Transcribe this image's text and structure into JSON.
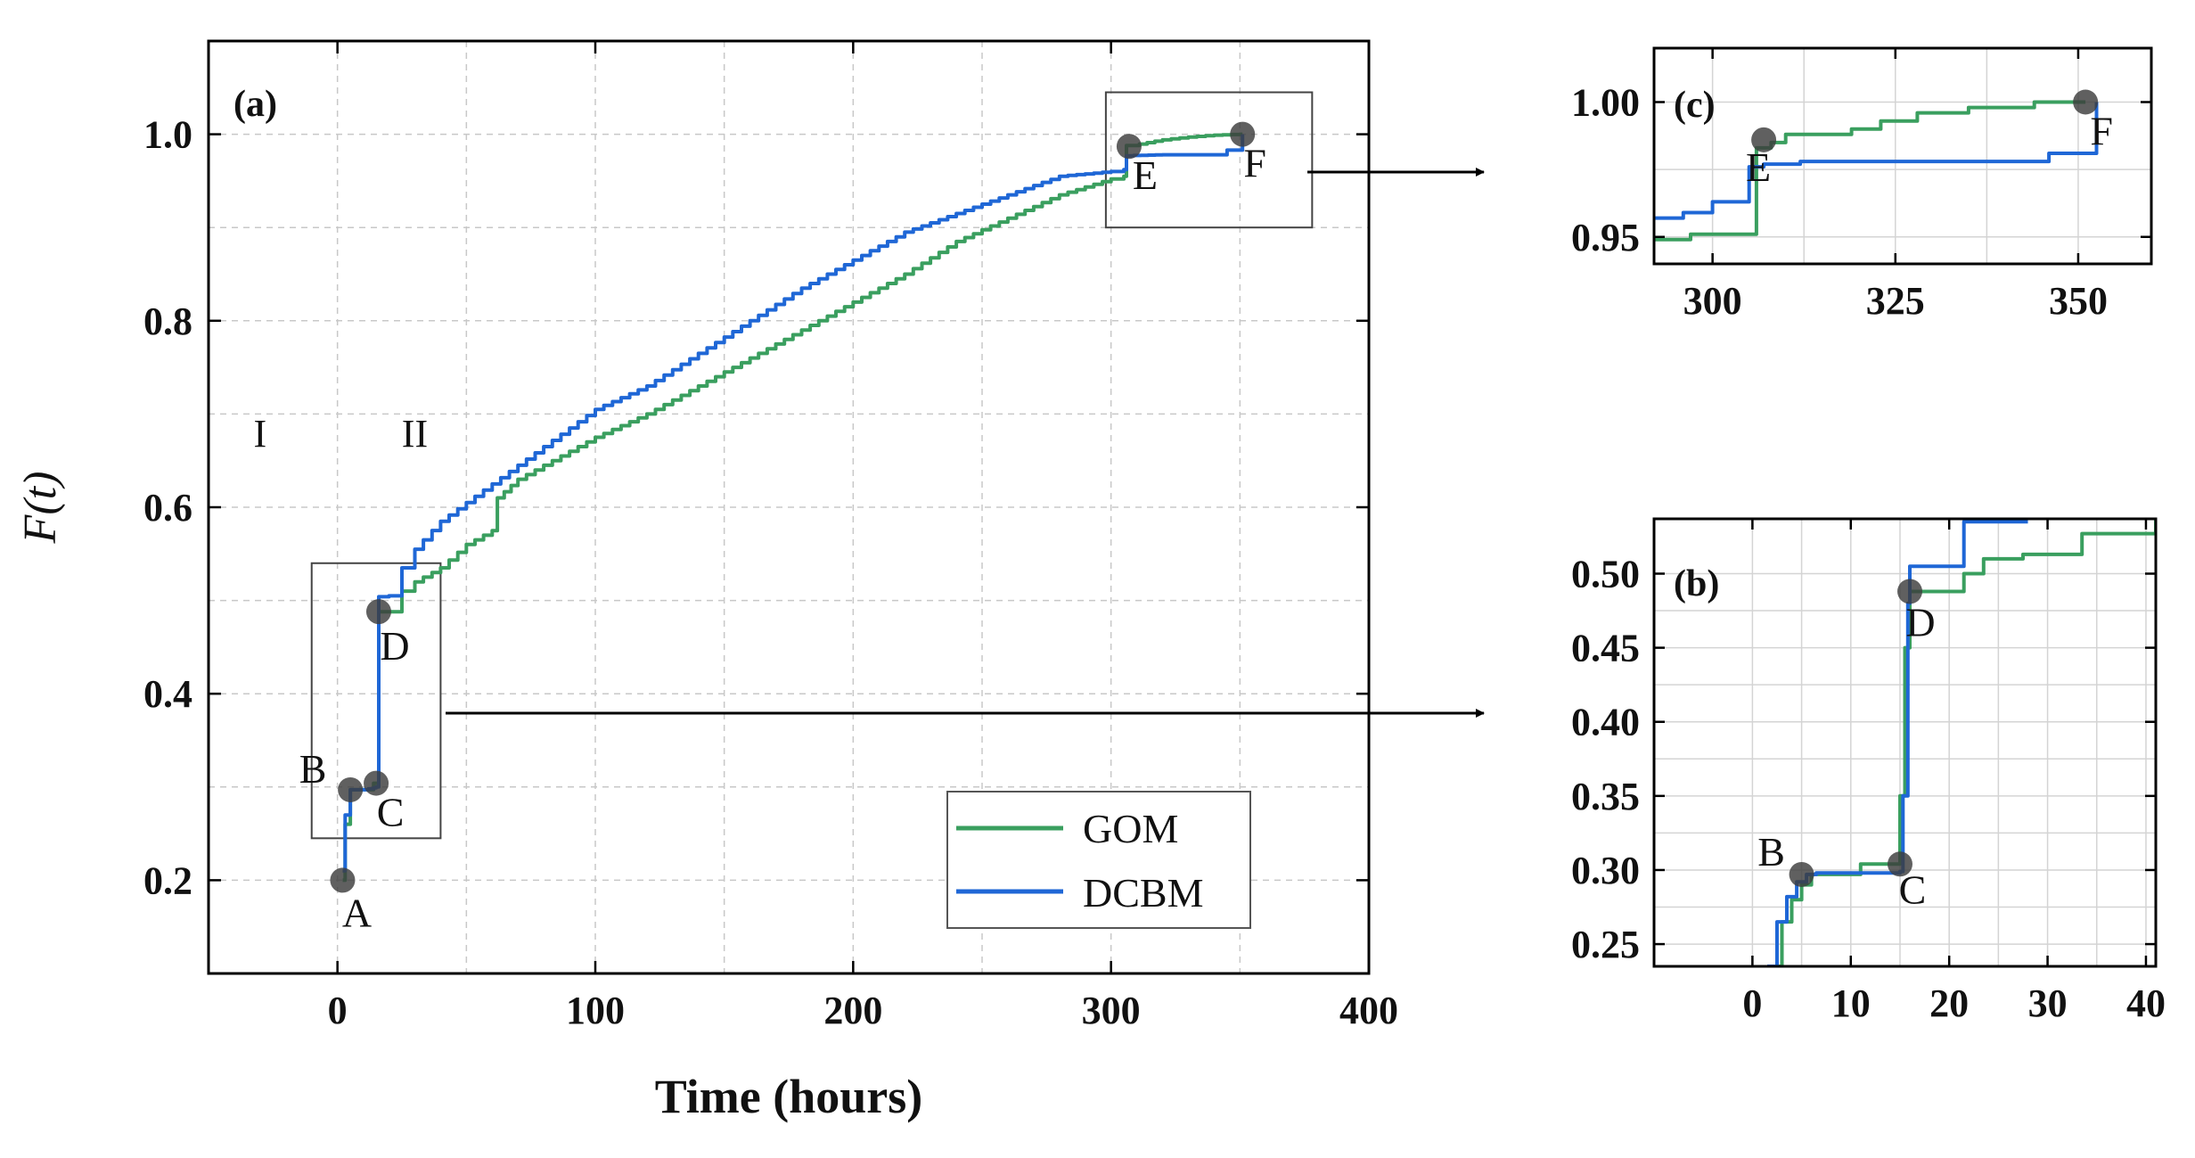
{
  "colors": {
    "GOM": "#3a9f5f",
    "DCBM": "#1f67d6",
    "marker": "#3d3d3d",
    "grid": "#c8c8c8"
  },
  "chart_data": [
    {
      "id": "a",
      "type": "line",
      "panel_label": "(a)",
      "xlabel": "Time (hours)",
      "ylabel_prefix": "F(",
      "ylabel_var": "t",
      "ylabel_suffix": ")",
      "xlim": [
        -50,
        400
      ],
      "ylim": [
        0.1,
        1.1
      ],
      "xticks": [
        0,
        100,
        200,
        300,
        400
      ],
      "yticks": [
        0.2,
        0.4,
        0.6,
        0.8,
        1.0
      ],
      "xtick_labels": [
        "0",
        "100",
        "200",
        "300",
        "400"
      ],
      "ytick_labels": [
        "0.2",
        "0.4",
        "0.6",
        "0.8",
        "1.0"
      ],
      "grid": true,
      "region_labels": [
        {
          "text": "I",
          "x": -30,
          "y": 0.665
        },
        {
          "text": "II",
          "x": 30,
          "y": 0.665
        }
      ],
      "series": [
        {
          "name": "GOM",
          "color": "#3a9f5f",
          "x": [
            2,
            3,
            5,
            8,
            12,
            14,
            15,
            16,
            20,
            25,
            30,
            40,
            50,
            60,
            62,
            70,
            80,
            90,
            100,
            120,
            140,
            160,
            180,
            200,
            220,
            240,
            260,
            280,
            300,
            305,
            306,
            308,
            320,
            330,
            340,
            350,
            351
          ],
          "y": [
            0.2,
            0.26,
            0.297,
            0.297,
            0.297,
            0.304,
            0.304,
            0.488,
            0.488,
            0.51,
            0.52,
            0.535,
            0.56,
            0.575,
            0.61,
            0.63,
            0.645,
            0.66,
            0.675,
            0.7,
            0.73,
            0.76,
            0.79,
            0.82,
            0.85,
            0.885,
            0.91,
            0.935,
            0.952,
            0.955,
            0.988,
            0.988,
            0.994,
            0.997,
            0.999,
            1.0,
            1.0
          ]
        },
        {
          "name": "DCBM",
          "color": "#1f67d6",
          "x": [
            2,
            3,
            5,
            8,
            12,
            14,
            15,
            16,
            20,
            25,
            30,
            40,
            50,
            60,
            70,
            80,
            90,
            100,
            120,
            140,
            160,
            180,
            200,
            220,
            240,
            260,
            280,
            300,
            305,
            306,
            320,
            340,
            345,
            348,
            351
          ],
          "y": [
            0.21,
            0.27,
            0.297,
            0.297,
            0.298,
            0.299,
            0.3,
            0.504,
            0.505,
            0.535,
            0.555,
            0.585,
            0.605,
            0.625,
            0.645,
            0.665,
            0.685,
            0.705,
            0.73,
            0.765,
            0.8,
            0.835,
            0.865,
            0.895,
            0.915,
            0.935,
            0.955,
            0.96,
            0.962,
            0.977,
            0.978,
            0.978,
            0.983,
            0.983,
            1.0
          ]
        }
      ],
      "points": [
        {
          "label": "A",
          "x": 2,
          "y": 0.2
        },
        {
          "label": "B",
          "x": 5,
          "y": 0.297
        },
        {
          "label": "C",
          "x": 15,
          "y": 0.304
        },
        {
          "label": "D",
          "x": 16,
          "y": 0.488
        },
        {
          "label": "E",
          "x": 307,
          "y": 0.987
        },
        {
          "label": "F",
          "x": 351,
          "y": 1.0
        }
      ],
      "zoom_boxes": [
        {
          "target": "b",
          "x": [
            -10,
            40
          ],
          "y": [
            0.245,
            0.54
          ]
        },
        {
          "target": "c",
          "x": [
            298,
            378
          ],
          "y": [
            0.9,
            1.045
          ]
        }
      ],
      "legend": {
        "position": "lower-right",
        "entries": [
          "GOM",
          "DCBM"
        ]
      }
    },
    {
      "id": "c",
      "type": "line",
      "panel_label": "(c)",
      "xlim": [
        292,
        360
      ],
      "ylim": [
        0.94,
        1.02
      ],
      "xticks": [
        300,
        325,
        350
      ],
      "yticks": [
        0.95,
        1.0
      ],
      "xtick_labels": [
        "300",
        "325",
        "350"
      ],
      "ytick_labels": [
        "0.95",
        "1.00"
      ],
      "grid": true,
      "series": [
        {
          "name": "GOM",
          "color": "#3a9f5f",
          "x": [
            292,
            297,
            297,
            306,
            306,
            308,
            308,
            310,
            310,
            319,
            319,
            323,
            323,
            328,
            328,
            335,
            335,
            344,
            344,
            351
          ],
          "y": [
            0.949,
            0.949,
            0.951,
            0.951,
            0.983,
            0.983,
            0.985,
            0.985,
            0.988,
            0.988,
            0.99,
            0.99,
            0.993,
            0.993,
            0.996,
            0.996,
            0.998,
            0.998,
            1.0,
            1.0
          ]
        },
        {
          "name": "DCBM",
          "color": "#1f67d6",
          "x": [
            292,
            296,
            296,
            300,
            300,
            305,
            305,
            307,
            307,
            312,
            312,
            320,
            320,
            332,
            332,
            346,
            346,
            351,
            351,
            352.5
          ],
          "y": [
            0.957,
            0.957,
            0.959,
            0.959,
            0.963,
            0.963,
            0.976,
            0.976,
            0.977,
            0.977,
            0.978,
            0.978,
            0.978,
            0.978,
            0.978,
            0.978,
            0.981,
            0.981,
            0.981,
            1.0
          ]
        }
      ],
      "points": [
        {
          "label": "E",
          "x": 307,
          "y": 0.986
        },
        {
          "label": "F",
          "x": 351,
          "y": 1.0
        }
      ]
    },
    {
      "id": "b",
      "type": "line",
      "panel_label": "(b)",
      "xlim": [
        -10,
        41
      ],
      "ylim": [
        0.235,
        0.537
      ],
      "xticks": [
        0,
        10,
        20,
        30,
        40
      ],
      "yticks": [
        0.25,
        0.3,
        0.35,
        0.4,
        0.45,
        0.5
      ],
      "xtick_labels": [
        "0",
        "10",
        "20",
        "30",
        "40"
      ],
      "ytick_labels": [
        "0.25",
        "0.30",
        "0.35",
        "0.40",
        "0.45",
        "0.50"
      ],
      "grid": true,
      "series": [
        {
          "name": "GOM",
          "color": "#3a9f5f",
          "x": [
            2,
            3,
            4,
            5,
            6,
            7,
            10,
            11,
            14.5,
            15,
            15.5,
            16,
            21,
            21.5,
            23,
            23.5,
            27,
            27.5,
            33,
            33.5,
            40,
            41
          ],
          "y": [
            0.235,
            0.265,
            0.28,
            0.29,
            0.297,
            0.297,
            0.297,
            0.304,
            0.304,
            0.35,
            0.45,
            0.488,
            0.488,
            0.5,
            0.5,
            0.51,
            0.51,
            0.513,
            0.513,
            0.527,
            0.527,
            0.537
          ]
        },
        {
          "name": "DCBM",
          "color": "#1f67d6",
          "x": [
            1.5,
            2.5,
            3.5,
            4.5,
            5.5,
            6.5,
            10,
            15,
            15.3,
            15.8,
            16,
            21,
            21.5,
            28
          ],
          "y": [
            0.235,
            0.265,
            0.282,
            0.292,
            0.297,
            0.298,
            0.298,
            0.299,
            0.35,
            0.48,
            0.505,
            0.505,
            0.535,
            0.535
          ]
        }
      ],
      "points": [
        {
          "label": "B",
          "x": 5,
          "y": 0.297
        },
        {
          "label": "C",
          "x": 15,
          "y": 0.304
        },
        {
          "label": "D",
          "x": 16,
          "y": 0.488
        }
      ]
    }
  ]
}
